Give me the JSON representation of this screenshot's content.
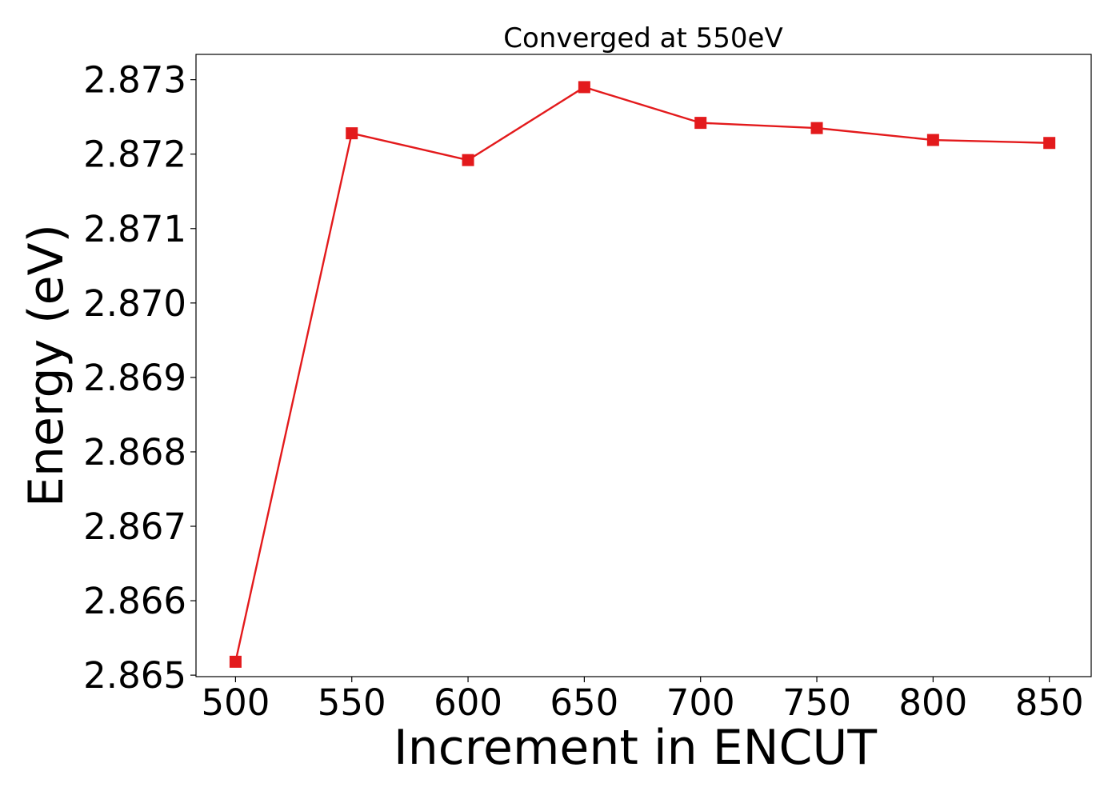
{
  "chart_data": {
    "type": "line",
    "title": "Converged at 550eV",
    "xlabel": "Increment in ENCUT",
    "ylabel": "Energy (eV)",
    "x": [
      500,
      550,
      600,
      650,
      700,
      750,
      800,
      850
    ],
    "series": [
      {
        "values": [
          2.86518,
          2.87228,
          2.87192,
          2.8729,
          2.87242,
          2.87235,
          2.87219,
          2.87215
        ],
        "color": "#e31a1c",
        "marker": "square"
      }
    ],
    "xticks": [
      500,
      550,
      600,
      650,
      700,
      750,
      800,
      850
    ],
    "xtick_labels": [
      "500",
      "550",
      "600",
      "650",
      "700",
      "750",
      "800",
      "850"
    ],
    "yticks": [
      2.865,
      2.866,
      2.867,
      2.868,
      2.869,
      2.87,
      2.871,
      2.872,
      2.873
    ],
    "ytick_labels": [
      "2.865",
      "2.866",
      "2.867",
      "2.868",
      "2.869",
      "2.870",
      "2.871",
      "2.872",
      "2.873"
    ],
    "xlim": [
      483,
      868
    ],
    "ylim": [
      2.86498,
      2.87334
    ],
    "grid": false,
    "legend": "none"
  }
}
